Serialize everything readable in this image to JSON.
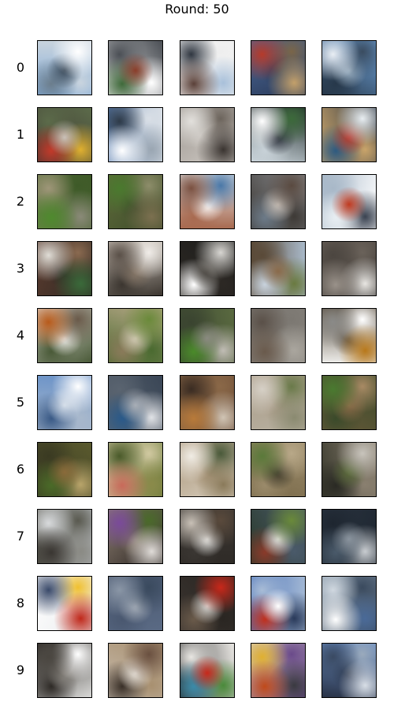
{
  "title": "Round: 50",
  "rows": [
    {
      "label": "0",
      "tiles": [
        {
          "name": "sky-boat",
          "colors": [
            "#7fa9d6",
            "#ffffff",
            "#3a4a5a",
            "#6b7d8c",
            "#c9d4de"
          ]
        },
        {
          "name": "white-mixed",
          "colors": [
            "#e8e8e8",
            "#8a3d2a",
            "#3f6a3a",
            "#ffffff",
            "#4b4f55"
          ]
        },
        {
          "name": "white-dark-blob",
          "colors": [
            "#ffffff",
            "#5a4038",
            "#a8c0da",
            "#2f3640",
            "#eeeeee"
          ]
        },
        {
          "name": "blue-red-boat",
          "colors": [
            "#4c6a9a",
            "#c3a06a",
            "#b63a2a",
            "#7a6548",
            "#2b3b5a"
          ]
        },
        {
          "name": "sky-blue",
          "colors": [
            "#6fa2d8",
            "#e9eef4",
            "#3a4c60",
            "#9fb3c4",
            "#27384a"
          ]
        }
      ]
    },
    {
      "label": "1",
      "tiles": [
        {
          "name": "dark-red-mix",
          "colors": [
            "#3b3330",
            "#c9c1b8",
            "#c23a2a",
            "#e0b030",
            "#5c6b4a"
          ]
        },
        {
          "name": "sky-white",
          "colors": [
            "#5b7fb0",
            "#ffffff",
            "#9aa6b2",
            "#2e3a48",
            "#d9dfe6"
          ]
        },
        {
          "name": "grey-dark",
          "colors": [
            "#9c9690",
            "#3a3430",
            "#e2e0dc",
            "#6c645c",
            "#cfcac4"
          ]
        },
        {
          "name": "dark-white-green",
          "colors": [
            "#1f2a2a",
            "#ffffff",
            "#3c6a3a",
            "#2a2f3a",
            "#c8d2d8"
          ]
        },
        {
          "name": "dark-colorful",
          "colors": [
            "#2a3442",
            "#e8eef2",
            "#b53a30",
            "#2e5a80",
            "#c9a46a"
          ]
        }
      ]
    },
    {
      "label": "2",
      "tiles": [
        {
          "name": "green-field",
          "colors": [
            "#6a7a4a",
            "#4f8a2e",
            "#8a8a78",
            "#9e9678",
            "#3e5a28"
          ]
        },
        {
          "name": "green-brown",
          "colors": [
            "#5e6a3a",
            "#7c7050",
            "#4a7a2e",
            "#8d8d6a",
            "#3c4a2a"
          ]
        },
        {
          "name": "white-colorful",
          "colors": [
            "#e6e8ea",
            "#7a5040",
            "#4a78a8",
            "#ffffff",
            "#a86a50"
          ]
        },
        {
          "name": "grey-brown-blob",
          "colors": [
            "#8a8c90",
            "#5a4a40",
            "#c8c0b8",
            "#6c7a88",
            "#3e3a36"
          ]
        },
        {
          "name": "white-red-car",
          "colors": [
            "#ffffff",
            "#c03a20",
            "#e8eef2",
            "#3a4250",
            "#a8b8c8"
          ]
        }
      ]
    },
    {
      "label": "3",
      "tiles": [
        {
          "name": "brown-green-white",
          "colors": [
            "#5a3a2e",
            "#3a6a3a",
            "#e0ddd6",
            "#8a6a50",
            "#2e2a24"
          ]
        },
        {
          "name": "beige-white",
          "colors": [
            "#d8d0c6",
            "#5a5048",
            "#f0ece8",
            "#8a7a6a",
            "#3c3630"
          ]
        },
        {
          "name": "dark-white",
          "colors": [
            "#1e1e1c",
            "#d8d6d2",
            "#4a4640",
            "#ffffff",
            "#2c2824"
          ]
        },
        {
          "name": "sky-brown-field",
          "colors": [
            "#a8b8c8",
            "#8a6a4a",
            "#c8d2dc",
            "#6a7a40",
            "#5a4a38"
          ]
        },
        {
          "name": "dark-grey-white",
          "colors": [
            "#2a2624",
            "#9a928a",
            "#e8e6e2",
            "#4c4640",
            "#6a625a"
          ]
        }
      ]
    },
    {
      "label": "4",
      "tiles": [
        {
          "name": "white-orange-flower",
          "colors": [
            "#e2e0dc",
            "#b85a1a",
            "#6a5a4a",
            "#f0eeea",
            "#4a5a38"
          ]
        },
        {
          "name": "tan-green",
          "colors": [
            "#b8a888",
            "#6a8a3a",
            "#d6ccb8",
            "#8a7a5a",
            "#4a6a30"
          ]
        },
        {
          "name": "green-grey",
          "colors": [
            "#5a6a40",
            "#8a8a80",
            "#4a8a2a",
            "#c0bcb4",
            "#3a4430"
          ]
        },
        {
          "name": "grey-brown",
          "colors": [
            "#8a8680",
            "#6a5a4c",
            "#aaa69e",
            "#5a5048",
            "#7c7872"
          ]
        },
        {
          "name": "white-orange-mix",
          "colors": [
            "#ecebe8",
            "#b8781a",
            "#8a8a88",
            "#ffffff",
            "#5a4e3e"
          ]
        }
      ]
    },
    {
      "label": "5",
      "tiles": [
        {
          "name": "blue-sky-cloud",
          "colors": [
            "#6a92c8",
            "#ffffff",
            "#d0dae6",
            "#3a5a86",
            "#a8b8cc"
          ]
        },
        {
          "name": "dark-blue-grey",
          "colors": [
            "#3a4656",
            "#a8aeb6",
            "#2a5a8a",
            "#e0e2e6",
            "#5a6470"
          ]
        },
        {
          "name": "brown-orange",
          "colors": [
            "#6a4a34",
            "#b87a3a",
            "#d0c4b4",
            "#3a2c22",
            "#8a6848"
          ]
        },
        {
          "name": "tan-soft",
          "colors": [
            "#b8b0a0",
            "#8a8a70",
            "#d6d0c6",
            "#6a7a4a",
            "#a89a86"
          ]
        },
        {
          "name": "green-brown-field",
          "colors": [
            "#6a5a3a",
            "#4a7a30",
            "#a88a64",
            "#8a6a48",
            "#3a4a2a"
          ]
        }
      ]
    },
    {
      "label": "6",
      "tiles": [
        {
          "name": "olive-leaves",
          "colors": [
            "#5a5a2e",
            "#8a6a3a",
            "#4a6a28",
            "#b8a46a",
            "#3a3a22"
          ]
        },
        {
          "name": "green-flowers",
          "colors": [
            "#6a7a3a",
            "#c86a5a",
            "#8a8a4a",
            "#4a5a2a",
            "#d0c8a0"
          ]
        },
        {
          "name": "beige-white-mix",
          "colors": [
            "#d8cebe",
            "#8a7a5a",
            "#f0ece4",
            "#4a5a3a",
            "#a89478"
          ]
        },
        {
          "name": "brown-green-mix",
          "colors": [
            "#7a6a4a",
            "#5a7a3a",
            "#b8a888",
            "#3e3a2a",
            "#9a8a6a"
          ]
        },
        {
          "name": "dark-green-white",
          "colors": [
            "#3a3a2e",
            "#c8c4bc",
            "#5a6a3a",
            "#2a2a24",
            "#8a8070"
          ]
        }
      ]
    },
    {
      "label": "7",
      "tiles": [
        {
          "name": "grey-dark-animal",
          "colors": [
            "#b8bcc0",
            "#3a3632",
            "#8a8a84",
            "#d8dadc",
            "#5a5a50"
          ]
        },
        {
          "name": "dark-purple-flower",
          "colors": [
            "#2a2420",
            "#e0dcd8",
            "#7a4a9a",
            "#4a6a2a",
            "#8a7c70"
          ]
        },
        {
          "name": "dark-white-blob",
          "colors": [
            "#2e2a26",
            "#c8c0b6",
            "#5a4a3c",
            "#ecebe8",
            "#3a3632"
          ]
        },
        {
          "name": "dark-green-colorful",
          "colors": [
            "#2a3a2a",
            "#6a8a3a",
            "#e0e0dc",
            "#8a3a2a",
            "#4a5a6a"
          ]
        },
        {
          "name": "dark-blue-grey2",
          "colors": [
            "#2a3440",
            "#8a949e",
            "#4a5a6a",
            "#c8ccd0",
            "#1e2630"
          ]
        }
      ]
    },
    {
      "label": "8",
      "tiles": [
        {
          "name": "red-boat-white",
          "colors": [
            "#e8eaec",
            "#c0281a",
            "#3a4a6a",
            "#f0c030",
            "#ffffff"
          ]
        },
        {
          "name": "blue-grey-haze",
          "colors": [
            "#5a6a84",
            "#8a96a6",
            "#3a4a5e",
            "#a8b0ba",
            "#4a5870"
          ]
        },
        {
          "name": "dark-red-boat",
          "colors": [
            "#3a3430",
            "#c8281a",
            "#d8d6d2",
            "#6a5a4a",
            "#2a2622"
          ]
        },
        {
          "name": "blue-red-boat2",
          "colors": [
            "#4a72b8",
            "#ffffff",
            "#c0301e",
            "#2a3a5a",
            "#a8bcd6"
          ]
        },
        {
          "name": "grey-blue-white",
          "colors": [
            "#8a9aaa",
            "#ffffff",
            "#4a6a98",
            "#d0d8e0",
            "#3a4a5e"
          ]
        }
      ]
    },
    {
      "label": "9",
      "tiles": [
        {
          "name": "white-grey-mix",
          "colors": [
            "#d8d8d6",
            "#4a4640",
            "#ffffff",
            "#8a8680",
            "#2e2a26"
          ]
        },
        {
          "name": "beige-brown",
          "colors": [
            "#c8bcae",
            "#6a5040",
            "#e8e2da",
            "#3a3028",
            "#a89070"
          ]
        },
        {
          "name": "dark-colorful-mix",
          "colors": [
            "#2a2a2a",
            "#c8281a",
            "#3a8aa8",
            "#4a8a3a",
            "#e8e6e2"
          ]
        },
        {
          "name": "red-orange-blob",
          "colors": [
            "#d8d0c8",
            "#c04a1a",
            "#3a3a40",
            "#e0b030",
            "#6a4a8a"
          ]
        },
        {
          "name": "sky-blue-haze",
          "colors": [
            "#6a8ec6",
            "#d8dee6",
            "#3a4a62",
            "#9aaabc",
            "#2a3448"
          ]
        }
      ]
    }
  ]
}
